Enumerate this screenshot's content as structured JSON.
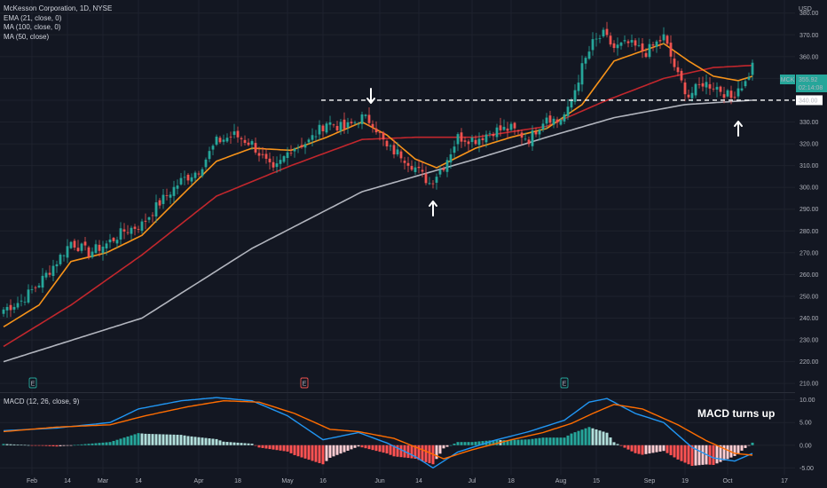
{
  "symbol": "MCK",
  "legend": {
    "title": "McKesson Corporation, 1D, NYSE",
    "ema": "EMA (21, close, 0)",
    "ma100": "MA (100, close, 0)",
    "ma50": "MA (50, close)",
    "macd": "MACD (12, 26, close, 9)"
  },
  "currency": "USD",
  "price_tag": {
    "symbol": "MCK",
    "price": "355.92",
    "countdown": "02:14:08"
  },
  "level_tag": "340.00",
  "annotation": "MACD turns up",
  "events": [
    "E",
    "E",
    "E"
  ],
  "colors": {
    "bg": "#131722",
    "up": "#26a69a",
    "down": "#ef5350",
    "ema": "#f7931a",
    "ma100": "#b2b5be",
    "ma50": "#c2272d",
    "macd": "#2196f3",
    "signal": "#ff6d00"
  },
  "chart_data": {
    "type": "candlestick",
    "x_ticks": [
      "Feb",
      "14",
      "Mar",
      "14",
      "Apr",
      "18",
      "May",
      "16",
      "Jun",
      "14",
      "Jul",
      "18",
      "Aug",
      "15",
      "Sep",
      "19",
      "Oct",
      "17"
    ],
    "y_ticks": [
      "380.00",
      "370.00",
      "360.00",
      "350.00",
      "340.00",
      "330.00",
      "320.00",
      "310.00",
      "300.00",
      "290.00",
      "280.00",
      "270.00",
      "260.00",
      "250.00",
      "240.00",
      "230.00",
      "220.00",
      "210.00"
    ],
    "macd_ticks": [
      "10.00",
      "5.00",
      "0.00",
      "-5.00"
    ],
    "ylim": [
      206,
      386
    ],
    "close_anchors": [
      [
        0,
        244
      ],
      [
        5,
        248
      ],
      [
        10,
        256
      ],
      [
        15,
        266
      ],
      [
        19,
        275
      ],
      [
        24,
        270
      ],
      [
        29,
        274
      ],
      [
        34,
        280
      ],
      [
        39,
        283
      ],
      [
        44,
        293
      ],
      [
        50,
        303
      ],
      [
        55,
        308
      ],
      [
        60,
        321
      ],
      [
        65,
        324
      ],
      [
        70,
        320
      ],
      [
        76,
        307
      ],
      [
        81,
        318
      ],
      [
        86,
        321
      ],
      [
        91,
        330
      ],
      [
        96,
        327
      ],
      [
        101,
        332
      ],
      [
        104,
        330
      ],
      [
        108,
        318
      ],
      [
        112,
        315
      ],
      [
        116,
        309
      ],
      [
        120,
        302
      ],
      [
        124,
        310
      ],
      [
        128,
        323
      ],
      [
        133,
        322
      ],
      [
        138,
        326
      ],
      [
        143,
        327
      ],
      [
        148,
        322
      ],
      [
        153,
        333
      ],
      [
        156,
        330
      ],
      [
        159,
        335
      ],
      [
        163,
        355
      ],
      [
        166,
        366
      ],
      [
        169,
        370
      ],
      [
        172,
        364
      ],
      [
        176,
        366
      ],
      [
        181,
        362
      ],
      [
        186,
        369
      ],
      [
        190,
        351
      ],
      [
        193,
        342
      ],
      [
        197,
        348
      ],
      [
        201,
        346
      ],
      [
        205,
        341
      ],
      [
        207,
        346
      ],
      [
        209,
        348
      ],
      [
        211,
        356
      ]
    ],
    "ema_21": [
      [
        0,
        236
      ],
      [
        10,
        246
      ],
      [
        19,
        266
      ],
      [
        29,
        270
      ],
      [
        39,
        278
      ],
      [
        50,
        296
      ],
      [
        60,
        312
      ],
      [
        70,
        318
      ],
      [
        81,
        317
      ],
      [
        91,
        323
      ],
      [
        101,
        330
      ],
      [
        108,
        324
      ],
      [
        116,
        313
      ],
      [
        122,
        309
      ],
      [
        133,
        318
      ],
      [
        143,
        323
      ],
      [
        153,
        327
      ],
      [
        163,
        338
      ],
      [
        172,
        358
      ],
      [
        186,
        366
      ],
      [
        193,
        358
      ],
      [
        200,
        351
      ],
      [
        207,
        349
      ],
      [
        211,
        351
      ]
    ],
    "ma_50": [
      [
        0,
        227
      ],
      [
        19,
        246
      ],
      [
        39,
        269
      ],
      [
        60,
        296
      ],
      [
        81,
        310
      ],
      [
        101,
        322
      ],
      [
        116,
        323
      ],
      [
        133,
        323
      ],
      [
        153,
        328
      ],
      [
        170,
        340
      ],
      [
        186,
        350
      ],
      [
        200,
        355
      ],
      [
        211,
        356
      ]
    ],
    "ma_100": [
      [
        0,
        220
      ],
      [
        39,
        240
      ],
      [
        70,
        272
      ],
      [
        101,
        298
      ],
      [
        133,
        313
      ],
      [
        153,
        323
      ],
      [
        172,
        332
      ],
      [
        192,
        338
      ],
      [
        211,
        340
      ]
    ],
    "horizontal_level": 340,
    "macd_ylim": [
      -6.5,
      11.5
    ],
    "macd_line": [
      [
        0,
        3.2
      ],
      [
        15,
        3.8
      ],
      [
        30,
        5.0
      ],
      [
        38,
        8.0
      ],
      [
        50,
        9.8
      ],
      [
        60,
        10.5
      ],
      [
        70,
        9.8
      ],
      [
        80,
        6.5
      ],
      [
        90,
        1.2
      ],
      [
        100,
        2.8
      ],
      [
        108,
        0.5
      ],
      [
        116,
        -2.5
      ],
      [
        121,
        -5.0
      ],
      [
        128,
        -1.5
      ],
      [
        138,
        1.0
      ],
      [
        148,
        3.0
      ],
      [
        158,
        5.5
      ],
      [
        165,
        9.5
      ],
      [
        170,
        10.3
      ],
      [
        178,
        7.0
      ],
      [
        186,
        5.0
      ],
      [
        194,
        -0.5
      ],
      [
        200,
        -2.8
      ],
      [
        206,
        -3.5
      ],
      [
        211,
        -1.8
      ]
    ],
    "signal_line": [
      [
        0,
        3.0
      ],
      [
        15,
        4.0
      ],
      [
        30,
        4.5
      ],
      [
        40,
        6.5
      ],
      [
        52,
        8.5
      ],
      [
        62,
        9.8
      ],
      [
        72,
        9.5
      ],
      [
        82,
        7.0
      ],
      [
        92,
        3.5
      ],
      [
        100,
        3.0
      ],
      [
        110,
        1.5
      ],
      [
        118,
        -1.0
      ],
      [
        124,
        -3.0
      ],
      [
        132,
        -1.0
      ],
      [
        142,
        1.0
      ],
      [
        152,
        2.8
      ],
      [
        160,
        4.8
      ],
      [
        166,
        7.0
      ],
      [
        172,
        9.0
      ],
      [
        180,
        8.0
      ],
      [
        190,
        4.5
      ],
      [
        198,
        1.0
      ],
      [
        206,
        -1.8
      ],
      [
        211,
        -2.2
      ]
    ]
  }
}
